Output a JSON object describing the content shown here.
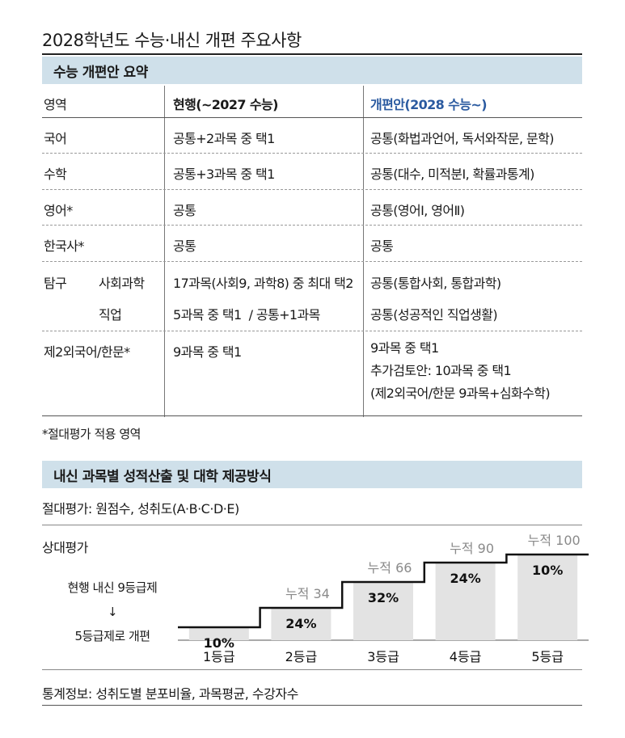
{
  "title": "2028학년도 수능·내신 개편 주요사항",
  "section1": {
    "heading": "수능 개편안 요약",
    "headers": {
      "area": "영역",
      "current": "현행(~2027 수능)",
      "reform": "개편안(2028 수능~)"
    },
    "rows": [
      {
        "area": "국어",
        "current": "공통+2과목 중 택1",
        "reform": "공통(화법과언어, 독서와작문, 문학)"
      },
      {
        "area": "수학",
        "current": "공통+3과목 중 택1",
        "reform": "공통(대수, 미적분Ⅰ, 확률과통계)"
      },
      {
        "area": "영어*",
        "current": "공통",
        "reform": "공통(영어Ⅰ, 영어Ⅱ)"
      },
      {
        "area": "한국사*",
        "current": "공통",
        "reform": "공통"
      }
    ],
    "inquiry": {
      "area": "탐구",
      "social_label": "사회과학",
      "social_current": "17과목(사회9, 과학8) 중 최대 택2",
      "social_reform": "공통(통합사회, 통합과학)",
      "vocational_label": "직업",
      "vocational_current": "5과목 중 택1  / 공통+1과목",
      "vocational_reform": "공통(성공적인 직업생활)"
    },
    "foreign": {
      "area": "제2외국어/한문*",
      "current": "9과목 중 택1",
      "reform_lines": [
        "9과목 중 택1",
        "추가검토안: 10과목 중 택1",
        "(제2외국어/한문 9과목+심화수학)"
      ]
    },
    "footnote": "*절대평가 적용 영역"
  },
  "section2": {
    "heading": "내신 과목별 성적산출 및 대학 제공방식",
    "absolute": "절대평가: 원점수, 성취도(A·B·C·D·E)",
    "relative_label": "상대평가",
    "conversion_from": "현행 내신 9등급제",
    "conversion_arrow": "↓",
    "conversion_to": "5등급제로 개편",
    "stats": "통계정보: 성취도별 분포비율, 과목평균, 수강자수"
  },
  "chart_data": {
    "type": "bar",
    "categories": [
      "1등급",
      "2등급",
      "3등급",
      "4등급",
      "5등급"
    ],
    "values": [
      10,
      24,
      32,
      24,
      10
    ],
    "value_labels": [
      "10%",
      "24%",
      "32%",
      "24%",
      "10%"
    ],
    "cumulative": [
      10,
      34,
      66,
      90,
      100
    ],
    "cumulative_labels": [
      "",
      "누적 34",
      "누적 66",
      "누적 90",
      "누적 100"
    ],
    "colors": {
      "bar": "#e3e3e3",
      "step": "#111111",
      "cum_text": "#8a8a8a"
    }
  }
}
